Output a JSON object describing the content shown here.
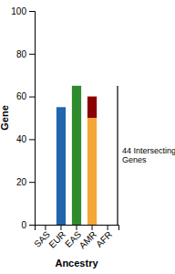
{
  "chart_data": {
    "type": "bar",
    "stacked": true,
    "categories": [
      "SAS",
      "EUR",
      "EAS",
      "AMR",
      "AFR"
    ],
    "series": [
      {
        "values": [
          0,
          55,
          65,
          50,
          0
        ],
        "colors": [
          "#2166ac",
          "#2166ac",
          "#2e8b2e",
          "#f4a636",
          "#2166ac"
        ]
      },
      {
        "values": [
          null,
          null,
          null,
          10,
          null
        ],
        "color": "#8b0000"
      }
    ],
    "xlabel": "Ancestry",
    "ylabel": "Gene",
    "ylim": [
      0,
      100
    ],
    "yticks": [
      0,
      20,
      40,
      60,
      80,
      100
    ],
    "grid": false,
    "annotations": [
      {
        "text": "44 Intersecting\nGenes",
        "y_from": 0,
        "y_to": 65
      }
    ]
  }
}
